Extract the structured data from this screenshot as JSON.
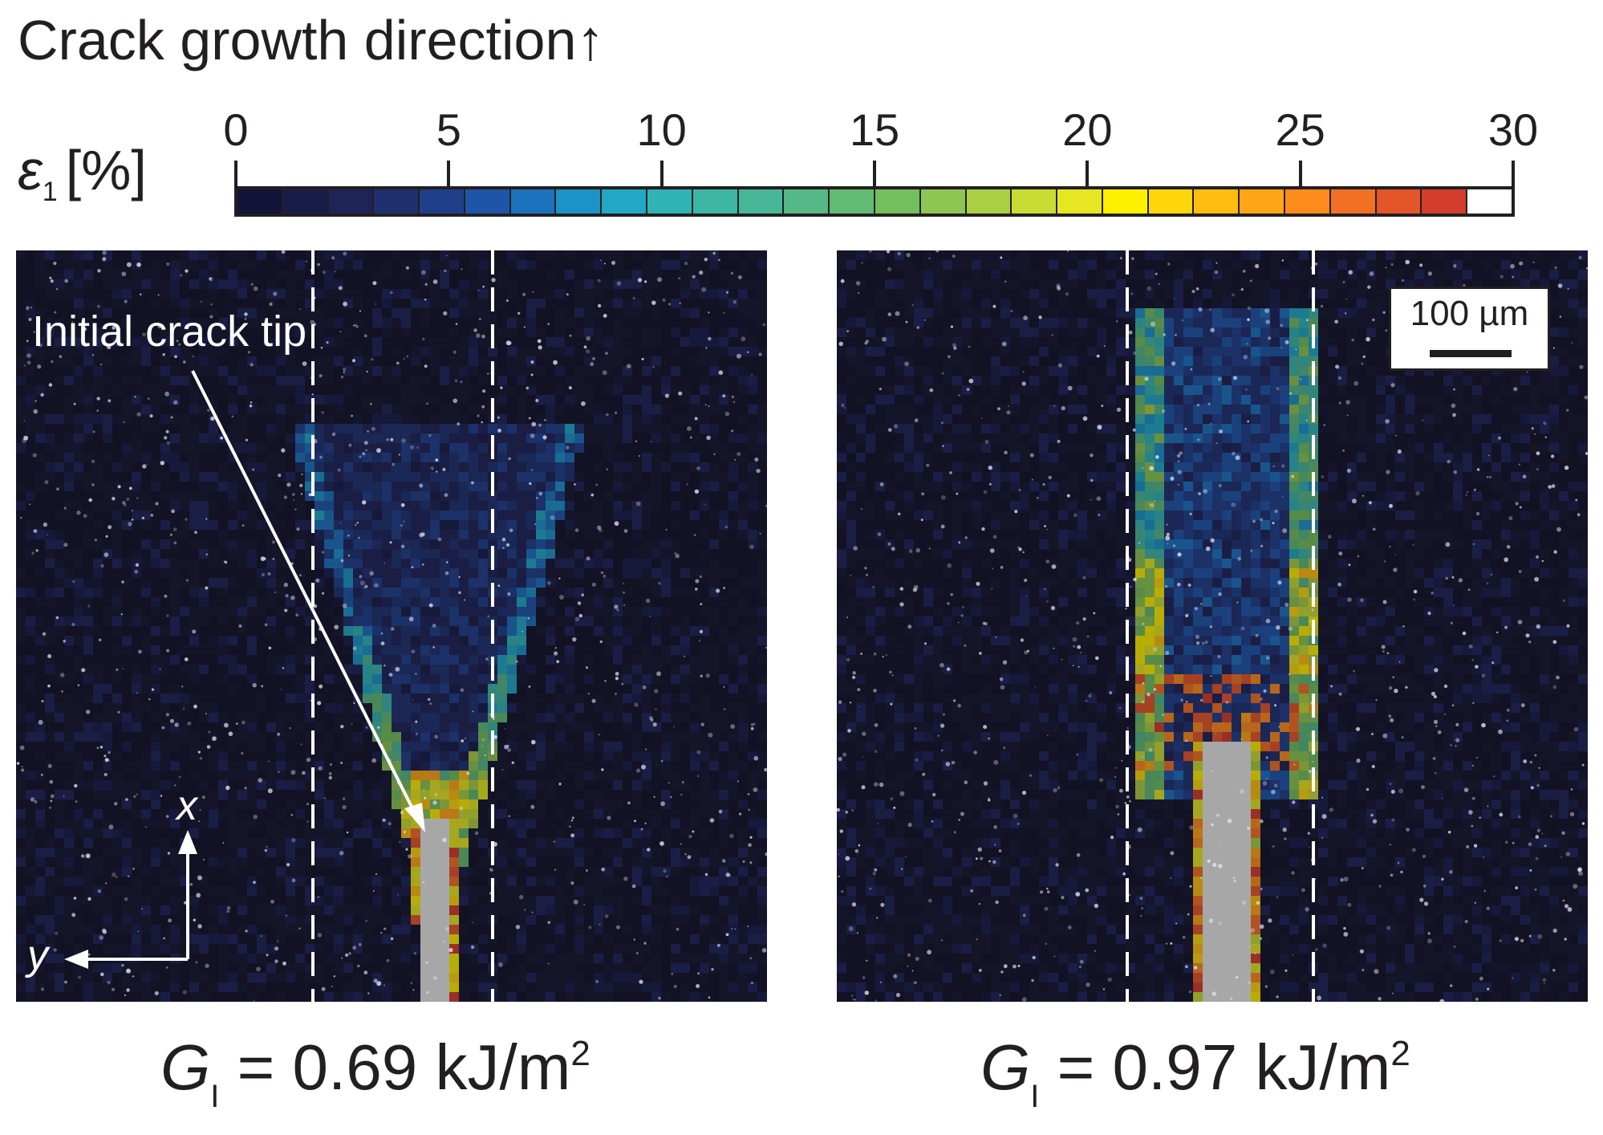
{
  "title": "Crack growth direction↑",
  "colorbar": {
    "label_symbol": "ε",
    "label_subscript": "1",
    "label_unit": "[%]",
    "ticks": [
      "0",
      "5",
      "10",
      "15",
      "20",
      "25",
      "30"
    ],
    "range": [
      0,
      30
    ],
    "colors": [
      "#14143a",
      "#1a1c48",
      "#1e2458",
      "#20306e",
      "#1f3f8a",
      "#1f55a8",
      "#1c72bd",
      "#1c93c8",
      "#21a8c4",
      "#30b3b5",
      "#3db6a6",
      "#48b797",
      "#55b886",
      "#62bb72",
      "#73bf5e",
      "#8dc653",
      "#a9cf45",
      "#c8db33",
      "#e6e722",
      "#fff000",
      "#ffd60b",
      "#ffbd10",
      "#ffa516",
      "#fd8b1d",
      "#f27024",
      "#e45529",
      "#d43c2b",
      "#ffffff"
    ]
  },
  "panels": [
    {
      "id": "left",
      "g_symbol": "G",
      "g_subscript": "I",
      "g_value": "= 0.69 kJ/m",
      "g_sup": "2",
      "annotation": "Initial crack tip",
      "axis_x": "x",
      "axis_y": "y"
    },
    {
      "id": "right",
      "g_symbol": "G",
      "g_subscript": "I",
      "g_value": "= 0.97 kJ/m",
      "g_sup": "2",
      "scalebar_label": "100 µm"
    }
  ]
}
